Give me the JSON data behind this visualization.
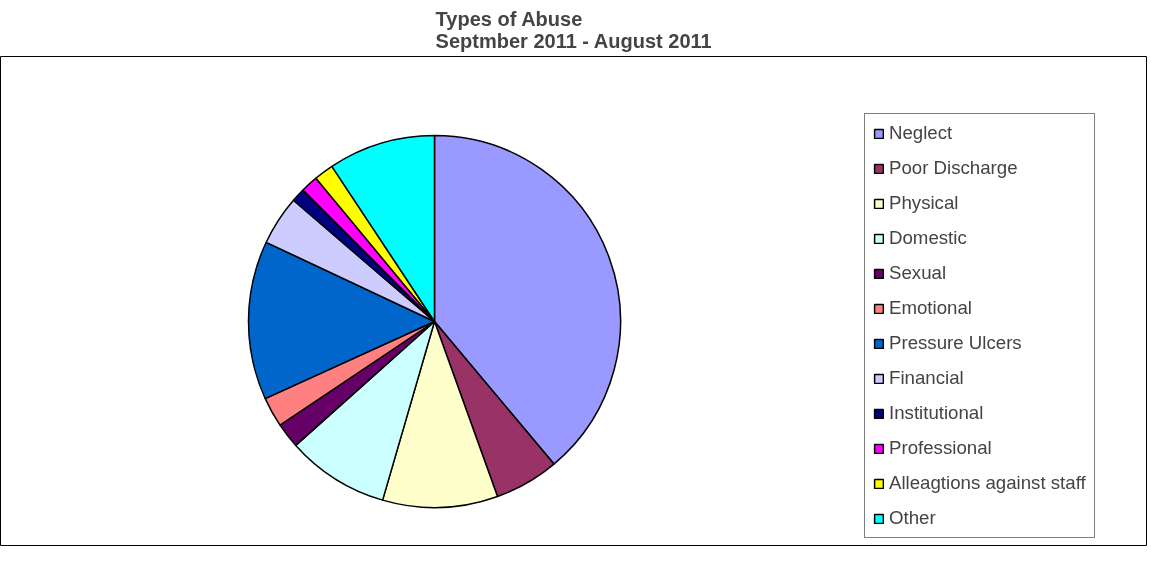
{
  "chart_data": {
    "type": "pie",
    "title": "Types of Abuse",
    "subtitle": "Septmber 2011 - August 2011",
    "legend": "right",
    "categories": [
      "Neglect",
      "Poor Discharge",
      "Physical",
      "Domestic",
      "Sexual",
      "Emotional",
      "Pressure Ulcers",
      "Financial",
      "Institutional",
      "Professional",
      "Alleagtions against staff",
      "Other"
    ],
    "values": [
      38.9,
      5.6,
      10.0,
      8.9,
      2.2,
      2.6,
      13.8,
      4.3,
      1.2,
      1.5,
      1.7,
      9.3
    ],
    "colors": [
      "#9999ff",
      "#993366",
      "#ffffcc",
      "#ccffff",
      "#660066",
      "#ff8080",
      "#0066cc",
      "#ccccff",
      "#000080",
      "#ff00ff",
      "#ffff00",
      "#00ffff"
    ]
  }
}
